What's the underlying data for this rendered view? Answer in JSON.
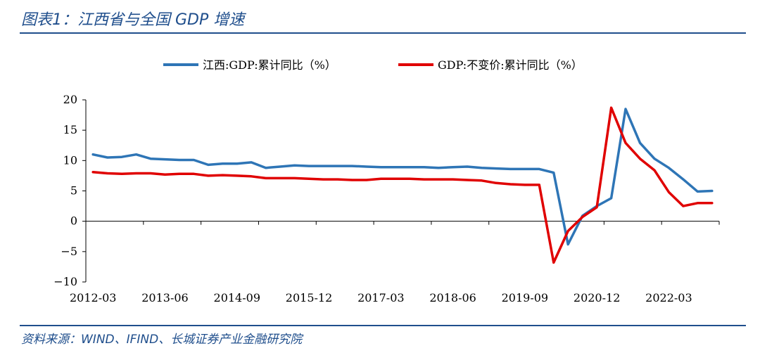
{
  "figure": {
    "title": "图表1：江西省与全国 GDP 增速",
    "source": "资料来源：WIND、IFIND、长城证券产业金融研究院"
  },
  "chart_data": {
    "type": "line",
    "x_tick_labels": [
      "2012-03",
      "2013-06",
      "2014-09",
      "2015-12",
      "2017-03",
      "2018-06",
      "2019-09",
      "2020-12",
      "2022-03"
    ],
    "ylim": [
      -10,
      20
    ],
    "y_ticks": [
      20,
      15,
      10,
      5,
      0,
      -5,
      -10
    ],
    "legend_position": "top",
    "grid": false,
    "x": [
      "2012-03",
      "2012-06",
      "2012-09",
      "2012-12",
      "2013-03",
      "2013-06",
      "2013-09",
      "2013-12",
      "2014-03",
      "2014-06",
      "2014-09",
      "2014-12",
      "2015-03",
      "2015-06",
      "2015-09",
      "2015-12",
      "2016-03",
      "2016-06",
      "2016-09",
      "2016-12",
      "2017-03",
      "2017-06",
      "2017-09",
      "2017-12",
      "2018-03",
      "2018-06",
      "2018-09",
      "2018-12",
      "2019-03",
      "2019-06",
      "2019-09",
      "2019-12",
      "2020-03",
      "2020-06",
      "2020-09",
      "2020-12",
      "2021-03",
      "2021-06",
      "2021-09",
      "2021-12",
      "2022-03",
      "2022-06",
      "2022-09",
      "2022-12"
    ],
    "series": [
      {
        "name": "江西:GDP:累计同比（%）",
        "color": "#2e75b6",
        "values": [
          11.0,
          10.5,
          10.6,
          11.0,
          10.3,
          10.2,
          10.1,
          10.1,
          9.3,
          9.5,
          9.5,
          9.7,
          8.8,
          9.0,
          9.2,
          9.1,
          9.1,
          9.1,
          9.1,
          9.0,
          8.9,
          8.9,
          8.9,
          8.9,
          8.8,
          8.9,
          9.0,
          8.8,
          8.7,
          8.6,
          8.6,
          8.6,
          8.0,
          -3.8,
          0.9,
          2.5,
          3.8,
          18.5,
          12.9,
          10.3,
          8.8,
          6.9,
          4.9,
          5.0
        ]
      },
      {
        "name": "GDP:不变价:累计同比（%）",
        "color": "#e00000",
        "values": [
          8.1,
          7.9,
          7.8,
          7.9,
          7.9,
          7.7,
          7.8,
          7.8,
          7.5,
          7.6,
          7.5,
          7.4,
          7.1,
          7.1,
          7.1,
          7.0,
          6.9,
          6.9,
          6.8,
          6.8,
          7.0,
          7.0,
          7.0,
          6.9,
          6.9,
          6.9,
          6.8,
          6.7,
          6.3,
          6.1,
          6.0,
          6.0,
          -6.8,
          -1.6,
          0.7,
          2.3,
          18.7,
          12.9,
          10.3,
          8.4,
          4.8,
          2.5,
          3.0,
          3.0
        ]
      }
    ]
  }
}
